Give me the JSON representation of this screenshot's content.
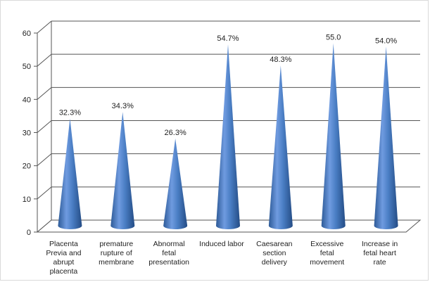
{
  "chart_data": {
    "type": "bar",
    "style": "3d-cone",
    "categories": [
      [
        "Placenta",
        "Previa and",
        "abrupt",
        "placenta"
      ],
      [
        "premature",
        "rupture of",
        "membrane"
      ],
      [
        "Abnormal",
        "fetal",
        "presentation"
      ],
      [
        "Induced labor"
      ],
      [
        "Caesarean",
        "section",
        "delivery"
      ],
      [
        "Excessive fetal",
        "movement"
      ],
      [
        "Increase in",
        "fetal heart",
        "rate"
      ]
    ],
    "values": [
      32.3,
      34.3,
      26.3,
      54.7,
      48.3,
      55.0,
      54.0
    ],
    "data_labels": [
      "32.3%",
      "34.3%",
      "26.3%",
      "54.7%",
      "48.3%",
      "55.0",
      "54.0%"
    ],
    "ylim": [
      0,
      60
    ],
    "yticks": [
      0,
      10,
      20,
      30,
      40,
      50,
      60
    ],
    "grid": true,
    "bar_color": "#4a7ec4"
  }
}
